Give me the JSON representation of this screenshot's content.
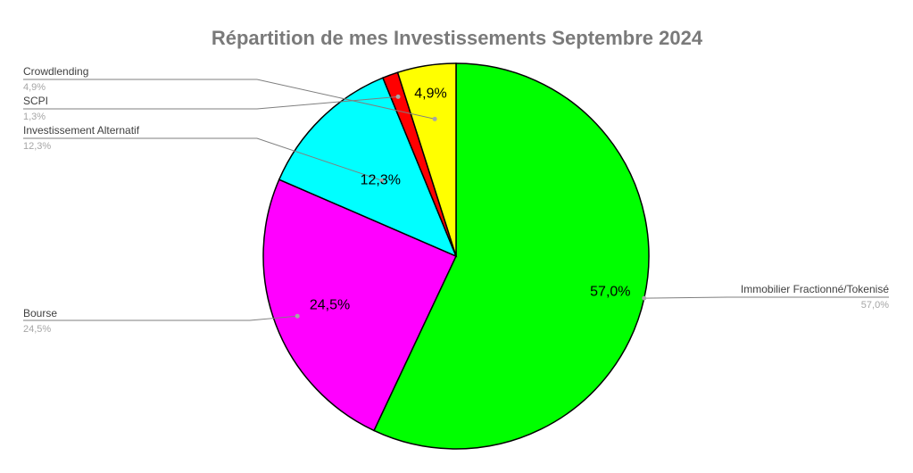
{
  "chart_data": {
    "type": "pie",
    "title": "Répartition de mes Investissements Septembre 2024",
    "slices": [
      {
        "label": "Immobilier Fractionné/Tokenisé",
        "value": 57.0,
        "display": "57,0%",
        "color": "#00ff00"
      },
      {
        "label": "Bourse",
        "value": 24.5,
        "display": "24,5%",
        "color": "#ff00ff"
      },
      {
        "label": "Investissement Alternatif",
        "value": 12.3,
        "display": "12,3%",
        "color": "#00ffff"
      },
      {
        "label": "SCPI",
        "value": 1.3,
        "display": "1,3%",
        "color": "#ff0000"
      },
      {
        "label": "Crowdlending",
        "value": 4.9,
        "display": "4,9%",
        "color": "#ffff00"
      }
    ]
  }
}
